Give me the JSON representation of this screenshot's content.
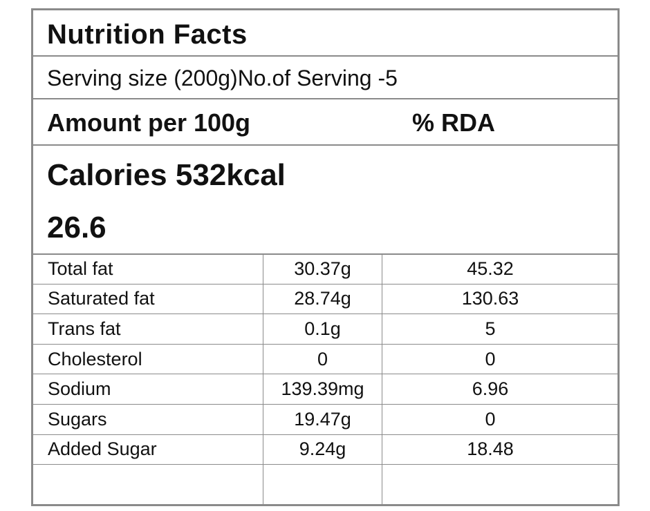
{
  "header": {
    "title": "Nutrition Facts",
    "serving": "Serving size (200g)No.of Serving -5",
    "amount": "Amount per 100g",
    "rda": "% RDA"
  },
  "calories": {
    "label": "Calories 532kcal",
    "rda": "26.6"
  },
  "table": {
    "rows": [
      [
        "Total fat",
        "30.37g",
        "45.32"
      ],
      [
        "Saturated fat",
        "28.74g",
        "130.63"
      ],
      [
        "Trans fat",
        "0.1g",
        "5"
      ],
      [
        "Cholesterol",
        "0",
        "0"
      ],
      [
        "Sodium",
        "139.39mg",
        "6.96"
      ],
      [
        "Sugars",
        "19.47g",
        "0"
      ],
      [
        "Added Sugar",
        "9.24g",
        "18.48"
      ]
    ]
  }
}
